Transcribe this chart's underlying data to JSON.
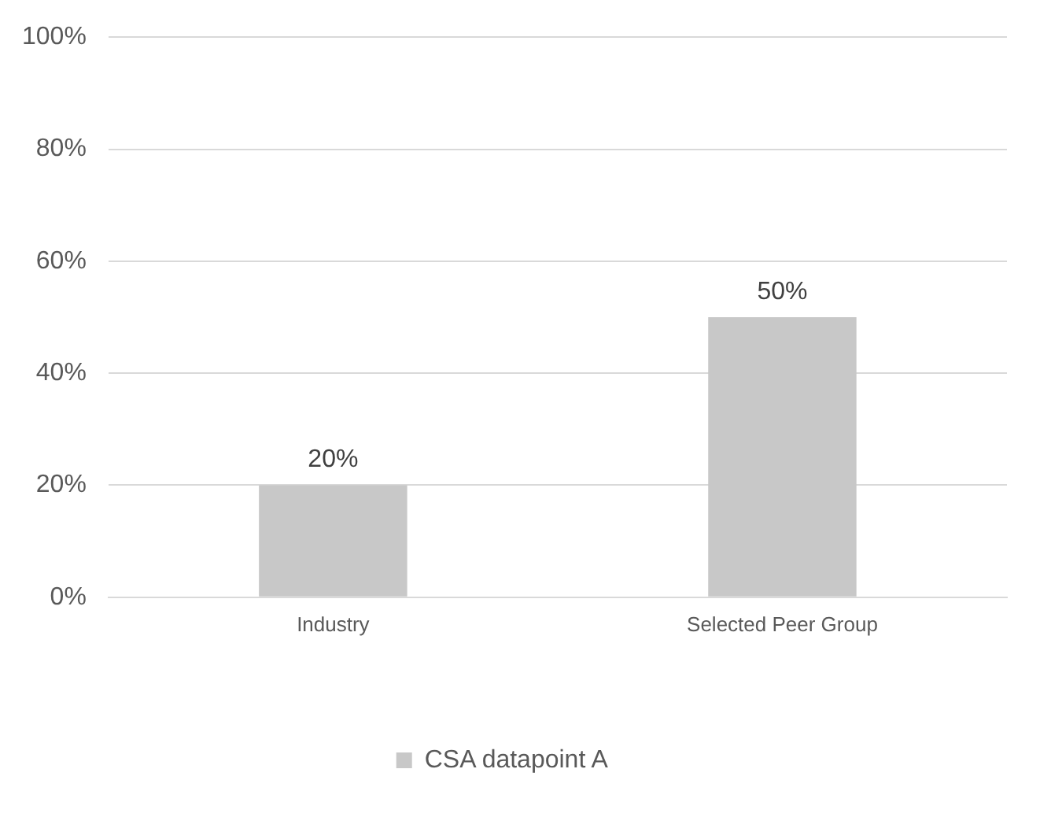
{
  "chart_data": {
    "type": "bar",
    "categories": [
      "Industry",
      "Selected Peer Group"
    ],
    "series": [
      {
        "name": "CSA datapoint A",
        "color": "#c8c8c8",
        "values": [
          20,
          50
        ],
        "value_labels": [
          "20%",
          "50%"
        ]
      }
    ],
    "ylim": [
      0,
      100
    ],
    "yticks": [
      {
        "value": 0,
        "label": "0%"
      },
      {
        "value": 20,
        "label": "20%"
      },
      {
        "value": 40,
        "label": "40%"
      },
      {
        "value": 60,
        "label": "60%"
      },
      {
        "value": 80,
        "label": "80%"
      },
      {
        "value": 100,
        "label": "100%"
      }
    ],
    "grid": "y",
    "legend": "bottom"
  }
}
